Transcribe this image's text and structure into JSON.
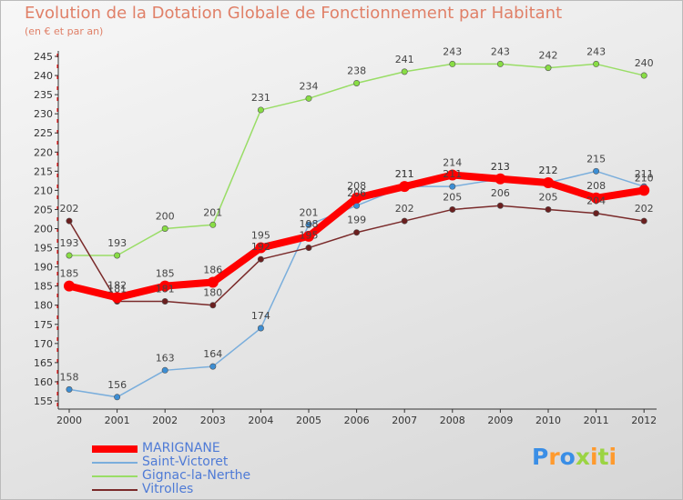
{
  "colors": {
    "title": "#e08068",
    "axis": "#333333",
    "tick_label": "#333333",
    "legend_text": "#4f7bd6",
    "axis_accent": "#ff0000"
  },
  "chart_data": {
    "type": "line",
    "title": "Evolution de la Dotation Globale de Fonctionnement par Habitant",
    "subtitle": "(en € et par an)",
    "xlabel": "",
    "ylabel": "",
    "ylim": [
      155,
      245
    ],
    "yticks": [
      155,
      160,
      165,
      170,
      175,
      180,
      185,
      190,
      195,
      200,
      205,
      210,
      215,
      220,
      225,
      230,
      235,
      240,
      245
    ],
    "categories": [
      "2000",
      "2001",
      "2002",
      "2003",
      "2004",
      "2005",
      "2006",
      "2007",
      "2008",
      "2009",
      "2010",
      "2011",
      "2012"
    ],
    "series": [
      {
        "name": "Gignac-la-Nerthe",
        "color": "#99dd66",
        "point_color": "#88dd44",
        "values": [
          193,
          193,
          200,
          201,
          231,
          234,
          238,
          241,
          243,
          243,
          242,
          243,
          240
        ]
      },
      {
        "name": "Saint-Victoret",
        "color": "#7aaedc",
        "point_color": "#3c8ed4",
        "values": [
          158,
          156,
          163,
          164,
          174,
          201,
          206,
          211,
          211,
          213,
          212,
          215,
          211
        ]
      },
      {
        "name": "Vitrolles",
        "color": "#7a2a2a",
        "point_color": "#6b1f1f",
        "values": [
          202,
          181,
          181,
          180,
          192,
          195,
          199,
          202,
          205,
          206,
          205,
          204,
          202
        ]
      },
      {
        "name": "MARIGNANE",
        "color": "#ff0000",
        "point_color": "#ff0000",
        "values": [
          185,
          182,
          185,
          186,
          195,
          198,
          208,
          211,
          214,
          213,
          212,
          208,
          210
        ],
        "bold": true
      }
    ],
    "legend_order": [
      "MARIGNANE",
      "Saint-Victoret",
      "Gignac-la-Nerthe",
      "Vitrolles"
    ]
  },
  "logo": {
    "letters": [
      "P",
      "r",
      "o",
      "x",
      "i",
      "t",
      "i"
    ],
    "colors": [
      "#3a8ee6",
      "#ff9a2e",
      "#3a8ee6",
      "#9bd443",
      "#ff9a2e",
      "#9bd443",
      "#ff9a2e"
    ]
  }
}
